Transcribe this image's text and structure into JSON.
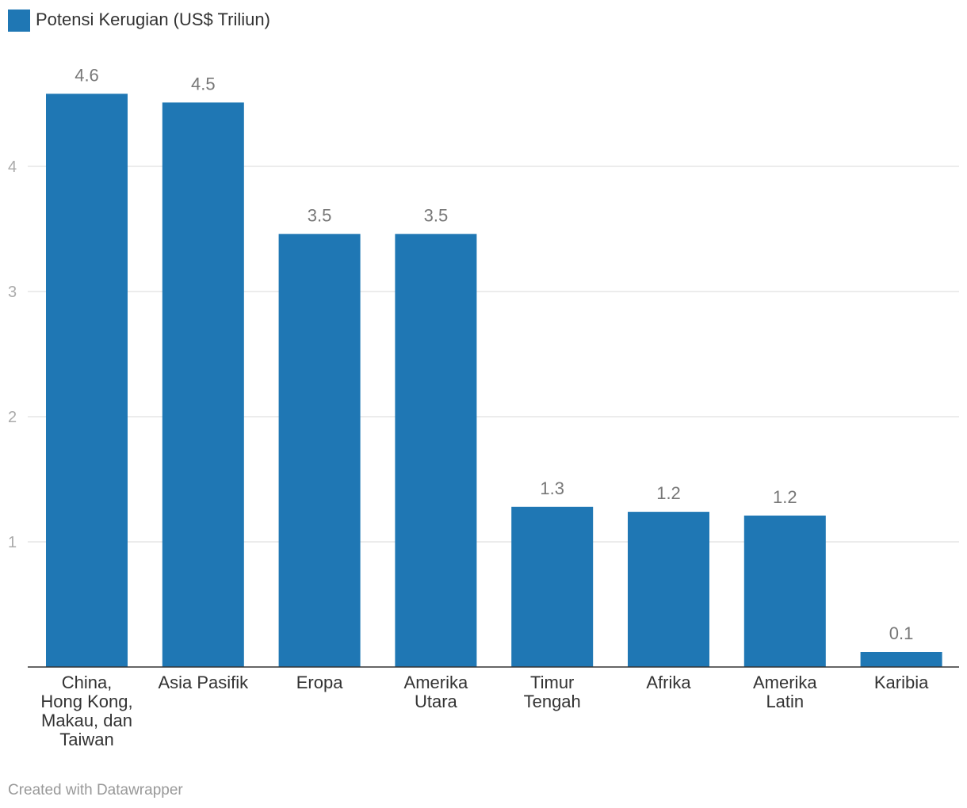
{
  "chart_data": {
    "type": "bar",
    "categories": [
      "China, Hong Kong, Makau, dan Taiwan",
      "Asia Pasifik",
      "Eropa",
      "Amerika Utara",
      "Timur Tengah",
      "Afrika",
      "Amerika Latin",
      "Karibia"
    ],
    "category_lines": [
      [
        "China,",
        "Hong Kong,",
        "Makau, dan",
        "Taiwan"
      ],
      [
        "Asia Pasifik"
      ],
      [
        "Eropa"
      ],
      [
        "Amerika",
        "Utara"
      ],
      [
        "Timur",
        "Tengah"
      ],
      [
        "Afrika"
      ],
      [
        "Amerika",
        "Latin"
      ],
      [
        "Karibia"
      ]
    ],
    "series": [
      {
        "name": "Potensi Kerugian (US$ Triliun)",
        "values": [
          4.6,
          4.5,
          3.5,
          3.5,
          1.3,
          1.2,
          1.2,
          0.1
        ],
        "plotted_values": [
          4.58,
          4.51,
          3.46,
          3.46,
          1.28,
          1.24,
          1.21,
          0.12
        ]
      }
    ],
    "yticks": [
      1,
      2,
      3,
      4
    ],
    "ylim": [
      0,
      4.8
    ],
    "grid": true,
    "legend_position": "top-left",
    "title": "",
    "xlabel": "",
    "ylabel": "",
    "colors": {
      "bar": "#1f77b4",
      "grid": "#e5e5e5",
      "axis": "#333333"
    }
  },
  "footer": {
    "credit": "Created with Datawrapper"
  }
}
